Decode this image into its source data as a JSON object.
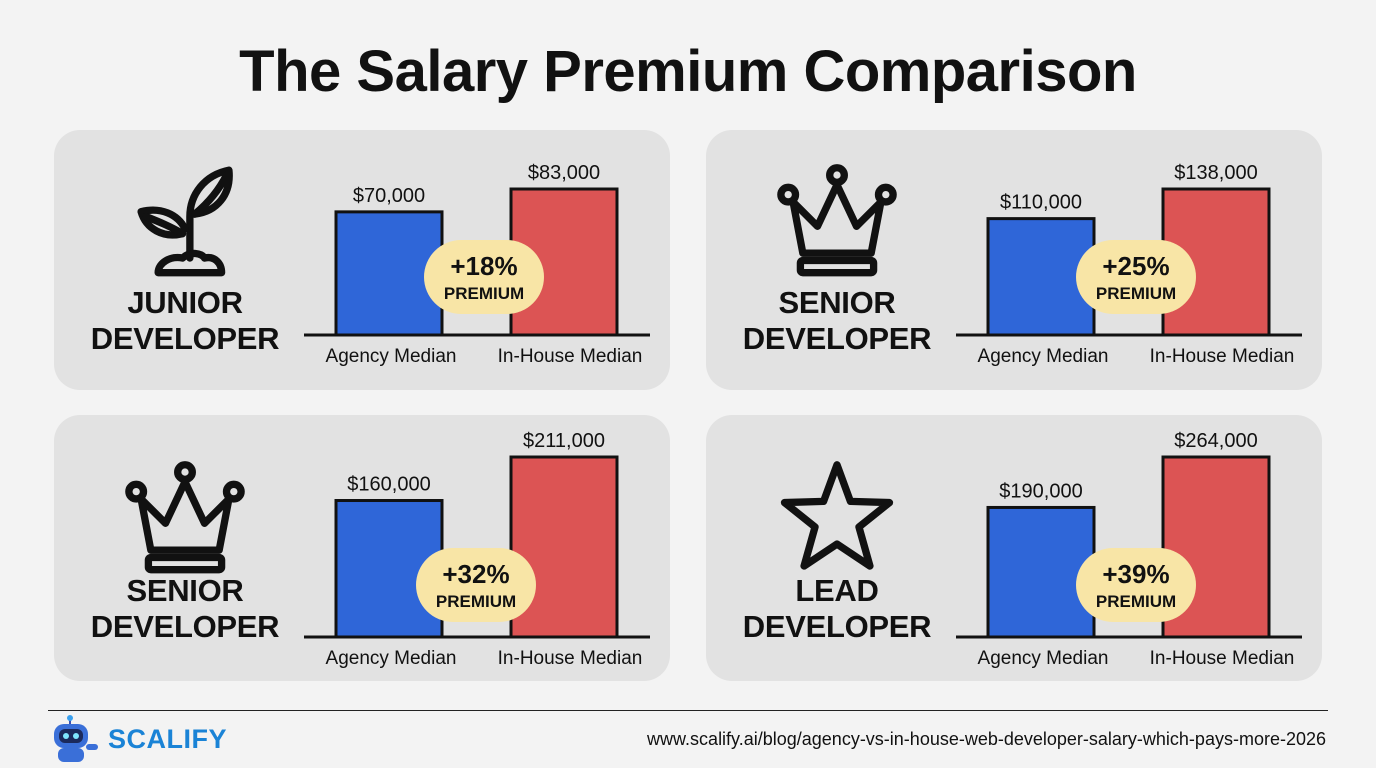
{
  "title": "The Salary Premium Comparison",
  "colors": {
    "agency": "#2f66d8",
    "inhouse": "#dc5454",
    "badge": "#f8e5a6"
  },
  "chart_data": [
    {
      "type": "bar",
      "role": [
        "JUNIOR",
        "DEVELOPER"
      ],
      "icon": "sprout-icon",
      "categories": [
        "Agency Median",
        "In-House Median"
      ],
      "values": [
        70000,
        83000
      ],
      "value_labels": [
        "$70,000",
        "$83,000"
      ],
      "premium": "+18%",
      "premium_label": "PREMIUM"
    },
    {
      "type": "bar",
      "role": [
        "SENIOR",
        "DEVELOPER"
      ],
      "icon": "crown-icon",
      "categories": [
        "Agency Median",
        "In-House Median"
      ],
      "values": [
        110000,
        138000
      ],
      "value_labels": [
        "$110,000",
        "$138,000"
      ],
      "premium": "+25%",
      "premium_label": "PREMIUM"
    },
    {
      "type": "bar",
      "role": [
        "SENIOR",
        "DEVELOPER"
      ],
      "icon": "crown-icon",
      "categories": [
        "Agency Median",
        "In-House Median"
      ],
      "values": [
        160000,
        211000
      ],
      "value_labels": [
        "$160,000",
        "$211,000"
      ],
      "premium": "+32%",
      "premium_label": "PREMIUM"
    },
    {
      "type": "bar",
      "role": [
        "LEAD",
        "DEVELOPER"
      ],
      "icon": "star-icon",
      "categories": [
        "Agency Median",
        "In-House Median"
      ],
      "values": [
        190000,
        264000
      ],
      "value_labels": [
        "$190,000",
        "$264,000"
      ],
      "premium": "+39%",
      "premium_label": "PREMIUM"
    }
  ],
  "footer": {
    "brand": "SCALIFY",
    "url": "www.scalify.ai/blog/agency-vs-in-house-web-developer-salary-which-pays-more-2026"
  }
}
